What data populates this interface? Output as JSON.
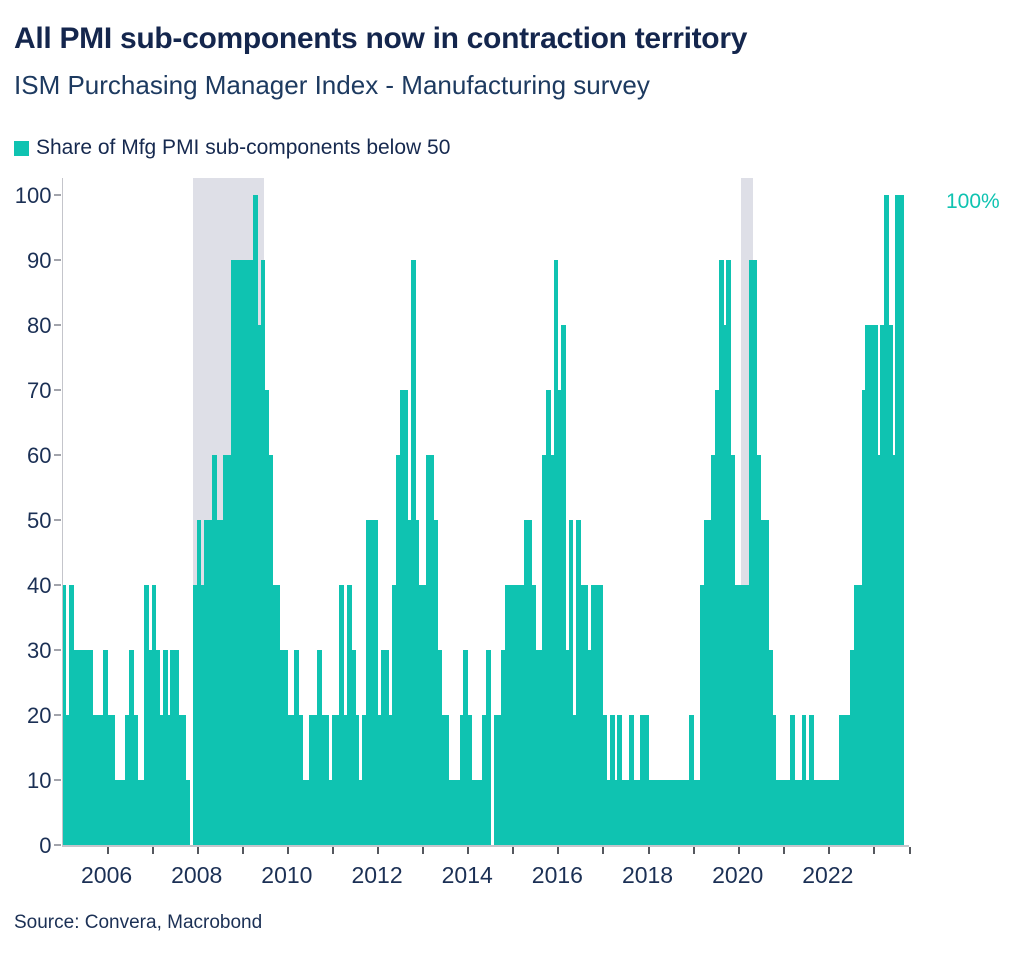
{
  "header": {
    "title": "All PMI sub-components now in contraction territory",
    "subtitle": "ISM Purchasing Manager Index - Manufacturing survey"
  },
  "legend": {
    "label": "Share of Mfg PMI sub-components below 50"
  },
  "annotation": {
    "label": "100%"
  },
  "source": {
    "text": "Source: Convera, Macrobond"
  },
  "colors": {
    "bar_teal": "#0fc3b1",
    "recession_band_gray": "#dedfe7",
    "axis_line_gray": "#c4c5cb",
    "navy_text": "#16294f"
  },
  "chart_data": {
    "type": "bar",
    "title": "Share of Mfg PMI sub-components below 50",
    "unit": "%",
    "frequency": "monthly",
    "start_period": "2005-01",
    "end_period": "2023-08",
    "ylim": [
      0,
      100
    ],
    "grid": false,
    "legend_position": "top-left",
    "y_ticks": [
      0,
      10,
      20,
      30,
      40,
      50,
      60,
      70,
      80,
      90,
      100
    ],
    "x_tick_years": [
      2006,
      2008,
      2010,
      2012,
      2014,
      2016,
      2018,
      2020,
      2022
    ],
    "recession_bands": [
      {
        "start": "2007-12",
        "end": "2009-06"
      },
      {
        "start": "2020-02",
        "end": "2020-04"
      }
    ],
    "annotation": {
      "text": "100%",
      "value": 100,
      "position": "right-of-last-bar"
    },
    "series": [
      {
        "name": "Share of Mfg PMI sub-components below 50",
        "values": [
          40,
          20,
          40,
          30,
          30,
          30,
          30,
          30,
          20,
          20,
          20,
          30,
          20,
          20,
          10,
          10,
          10,
          20,
          30,
          20,
          10,
          10,
          40,
          30,
          40,
          30,
          20,
          30,
          20,
          30,
          30,
          20,
          20,
          10,
          0,
          40,
          50,
          40,
          50,
          50,
          60,
          50,
          50,
          60,
          60,
          90,
          90,
          90,
          90,
          90,
          90,
          100,
          80,
          90,
          70,
          60,
          40,
          40,
          30,
          30,
          20,
          20,
          30,
          20,
          10,
          10,
          20,
          20,
          30,
          20,
          20,
          10,
          20,
          20,
          40,
          20,
          40,
          30,
          20,
          10,
          20,
          50,
          50,
          50,
          20,
          30,
          30,
          20,
          40,
          60,
          70,
          70,
          50,
          90,
          50,
          40,
          40,
          60,
          60,
          50,
          30,
          20,
          20,
          10,
          10,
          10,
          20,
          30,
          20,
          10,
          10,
          10,
          20,
          30,
          0,
          20,
          20,
          30,
          40,
          40,
          40,
          40,
          40,
          50,
          50,
          40,
          30,
          30,
          60,
          70,
          60,
          90,
          70,
          80,
          30,
          50,
          20,
          50,
          40,
          40,
          30,
          40,
          40,
          40,
          20,
          10,
          20,
          10,
          20,
          10,
          10,
          20,
          10,
          10,
          20,
          20,
          10,
          10,
          10,
          10,
          10,
          10,
          10,
          10,
          10,
          10,
          10,
          20,
          10,
          10,
          40,
          50,
          50,
          60,
          70,
          90,
          80,
          90,
          60,
          40,
          40,
          40,
          40,
          90,
          90,
          60,
          50,
          50,
          30,
          20,
          10,
          10,
          10,
          10,
          20,
          10,
          10,
          20,
          10,
          20,
          10,
          10,
          10,
          10,
          10,
          10,
          10,
          20,
          20,
          20,
          30,
          40,
          40,
          70,
          80,
          80,
          80,
          60,
          80,
          100,
          80,
          60,
          100,
          100
        ]
      }
    ]
  }
}
